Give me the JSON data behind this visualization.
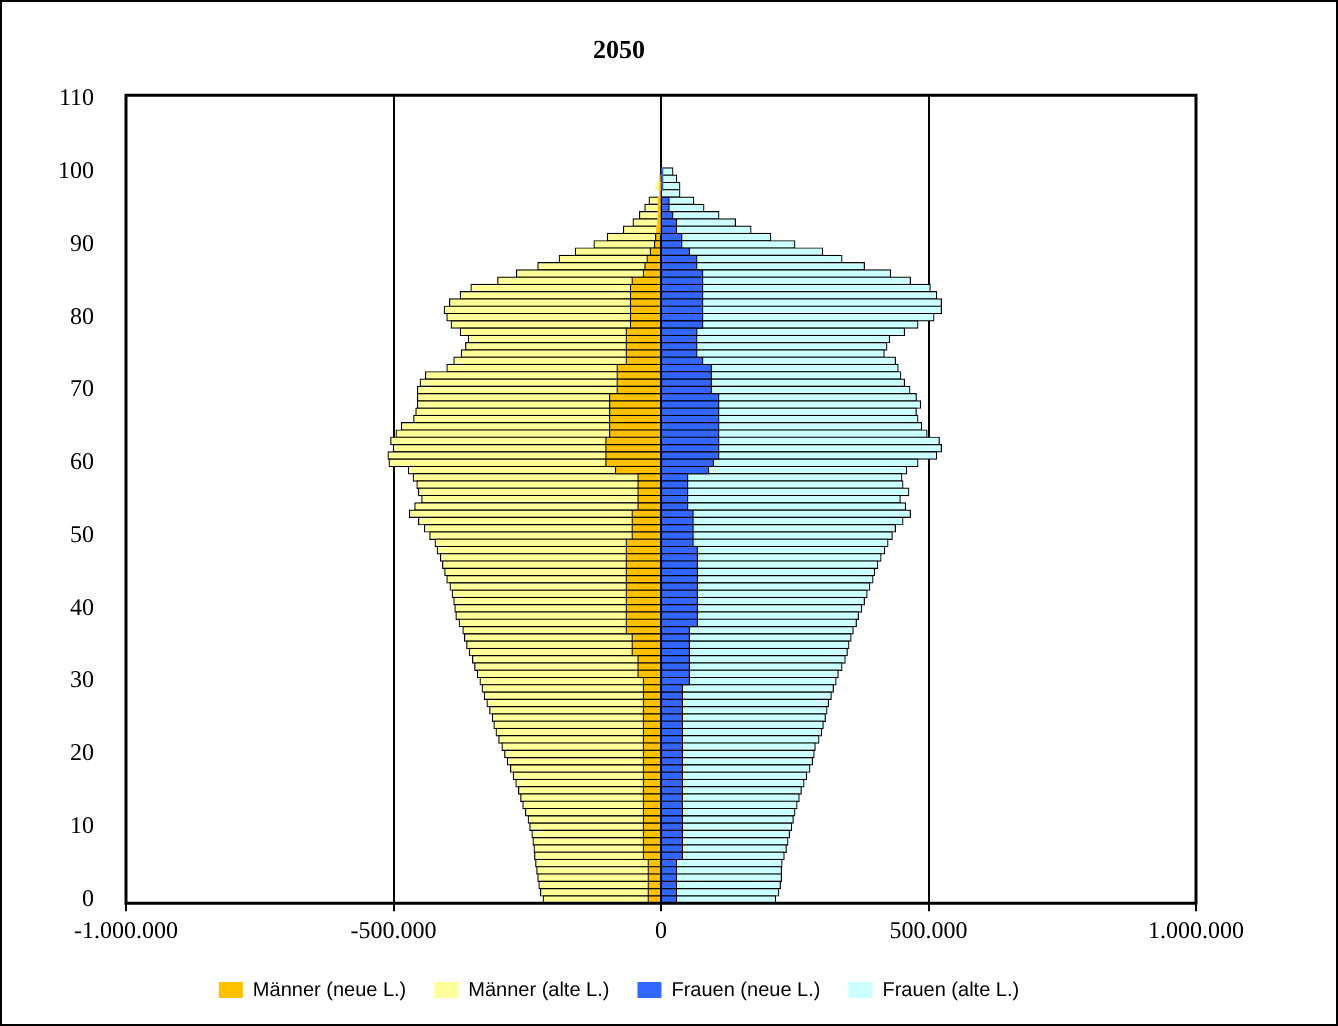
{
  "chart_data": {
    "type": "bar",
    "orientation": "horizontal",
    "stacked": true,
    "title": "2050",
    "categories": [
      "110",
      null,
      null,
      null,
      null,
      null,
      null,
      null,
      null,
      null,
      "100",
      null,
      null,
      null,
      null,
      null,
      null,
      null,
      null,
      null,
      "90",
      null,
      null,
      null,
      null,
      null,
      null,
      null,
      null,
      null,
      "80",
      null,
      null,
      null,
      null,
      null,
      null,
      null,
      null,
      null,
      "70",
      null,
      null,
      null,
      null,
      null,
      null,
      null,
      null,
      null,
      "60",
      null,
      null,
      null,
      null,
      null,
      null,
      null,
      null,
      null,
      "50",
      null,
      null,
      null,
      null,
      null,
      null,
      null,
      null,
      null,
      "40",
      null,
      null,
      null,
      null,
      null,
      null,
      null,
      null,
      null,
      "30",
      null,
      null,
      null,
      null,
      null,
      null,
      null,
      null,
      null,
      "20",
      null,
      null,
      null,
      null,
      null,
      null,
      null,
      null,
      null,
      "10",
      null,
      null,
      null,
      null,
      null,
      null,
      null,
      null,
      null,
      "0"
    ],
    "series": [
      {
        "name": "Männer (neue L.)",
        "color": "#ffc000",
        "values": [
          null,
          null,
          null,
          null,
          null,
          null,
          null,
          null,
          null,
          null,
          null,
          -2000,
          -2000,
          -2000,
          -5000,
          -5000,
          -5000,
          -6000,
          -8000,
          -10000,
          -12000,
          -20000,
          -26000,
          -30000,
          -33000,
          -54000,
          -57000,
          -57000,
          -57000,
          -57000,
          -57000,
          -57000,
          -65000,
          -65000,
          -65000,
          -65000,
          -65000,
          -82000,
          -82000,
          -82000,
          -82000,
          -96000,
          -96000,
          -96000,
          -96000,
          -96000,
          -96000,
          -103000,
          -103000,
          -103000,
          -103000,
          -85000,
          -43000,
          -43000,
          -43000,
          -43000,
          -43000,
          -54000,
          -54000,
          -54000,
          -54000,
          -65000,
          -65000,
          -65000,
          -65000,
          -65000,
          -65000,
          -65000,
          -65000,
          -65000,
          -65000,
          -65000,
          -65000,
          -65000,
          -54000,
          -54000,
          -54000,
          -43000,
          -43000,
          -43000,
          -33000,
          -33000,
          -33000,
          -33000,
          -33000,
          -33000,
          -33000,
          -33000,
          -33000,
          -33000,
          -33000,
          -33000,
          -33000,
          -33000,
          -33000,
          -33000,
          -33000,
          -33000,
          -33000,
          -33000,
          -33000,
          -33000,
          -33000,
          -33000,
          -33000,
          -24000,
          -24000,
          -24000,
          -24000,
          -24000,
          -24000
        ]
      },
      {
        "name": "Männer (alte L.)",
        "color": "#ffff99",
        "values": [
          null,
          null,
          null,
          null,
          null,
          null,
          null,
          null,
          null,
          null,
          null,
          null,
          -8000,
          null,
          -17000,
          -25000,
          -35000,
          -46000,
          -62000,
          -90000,
          -113000,
          -140000,
          -164000,
          -200000,
          -237000,
          -251000,
          -298000,
          -318000,
          -338000,
          -348000,
          -343000,
          -335000,
          -310000,
          -295000,
          -300000,
          -308000,
          -322000,
          -318000,
          -358000,
          -368000,
          -373000,
          -359000,
          -359000,
          -362000,
          -366000,
          -389000,
          -399000,
          -402000,
          -397000,
          -407000,
          -405000,
          -387000,
          -420000,
          -413000,
          -410000,
          -404000,
          -417000,
          -416000,
          -399000,
          -388000,
          -378000,
          -357000,
          -353000,
          -347000,
          -343000,
          -339000,
          -335000,
          -329000,
          -325000,
          -322000,
          -320000,
          -318000,
          -312000,
          -305000,
          -313000,
          -309000,
          -304000,
          -309000,
          -305000,
          -300000,
          -305000,
          -301000,
          -297000,
          -292000,
          -287000,
          -282000,
          -279000,
          -275000,
          -270000,
          -264000,
          -259000,
          -254000,
          -248000,
          -243000,
          -238000,
          -233000,
          -229000,
          -225000,
          -220000,
          -215000,
          -212000,
          -208000,
          -206000,
          -204000,
          -203000,
          -210000,
          -208000,
          -206000,
          -204000,
          -201000,
          -196000
        ]
      },
      {
        "name": "Frauen (neue L.)",
        "color": "#3366ff",
        "values": [
          null,
          null,
          null,
          null,
          null,
          null,
          null,
          null,
          null,
          null,
          3000,
          3000,
          3000,
          null,
          15000,
          15000,
          22000,
          29000,
          29000,
          39000,
          39000,
          53000,
          67000,
          67000,
          78000,
          78000,
          78000,
          78000,
          78000,
          78000,
          78000,
          78000,
          67000,
          67000,
          67000,
          67000,
          78000,
          94000,
          94000,
          94000,
          94000,
          108000,
          108000,
          108000,
          108000,
          108000,
          108000,
          108000,
          108000,
          108000,
          98000,
          89000,
          50000,
          50000,
          50000,
          50000,
          50000,
          60000,
          60000,
          60000,
          60000,
          60000,
          68000,
          68000,
          68000,
          68000,
          68000,
          68000,
          68000,
          68000,
          68000,
          68000,
          68000,
          53000,
          53000,
          53000,
          53000,
          53000,
          53000,
          53000,
          53000,
          40000,
          40000,
          40000,
          40000,
          40000,
          40000,
          40000,
          40000,
          40000,
          40000,
          40000,
          40000,
          40000,
          40000,
          40000,
          40000,
          40000,
          40000,
          40000,
          40000,
          40000,
          40000,
          40000,
          40000,
          29000,
          29000,
          29000,
          29000,
          29000,
          29000
        ]
      },
      {
        "name": "Frauen (alte L.)",
        "color": "#ccffff",
        "values": [
          null,
          null,
          null,
          null,
          null,
          null,
          null,
          null,
          null,
          null,
          19000,
          26000,
          32000,
          35000,
          46000,
          65000,
          86000,
          110000,
          139000,
          166000,
          211000,
          249000,
          271000,
          313000,
          351000,
          388000,
          425000,
          437000,
          446000,
          446000,
          432000,
          402000,
          388000,
          360000,
          355000,
          350000,
          360000,
          349000,
          354000,
          361000,
          371000,
          369000,
          377000,
          369000,
          372000,
          379000,
          389000,
          412000,
          416000,
          407000,
          382000,
          370000,
          400000,
          402000,
          413000,
          397000,
          407000,
          406000,
          392000,
          378000,
          372000,
          364000,
          350000,
          343000,
          337000,
          331000,
          328000,
          322000,
          317000,
          312000,
          307000,
          301000,
          297000,
          306000,
          302000,
          298000,
          295000,
          291000,
          285000,
          278000,
          274000,
          282000,
          278000,
          273000,
          270000,
          267000,
          263000,
          260000,
          255000,
          248000,
          246000,
          243000,
          238000,
          232000,
          227000,
          222000,
          218000,
          214000,
          210000,
          207000,
          204000,
          200000,
          197000,
          194000,
          190000,
          197000,
          196000,
          196000,
          194000,
          191000,
          185000
        ]
      }
    ],
    "xlim": [
      -1000000,
      1000000
    ],
    "xticks": [
      {
        "value": -1000000,
        "label": "-1.000.000"
      },
      {
        "value": -500000,
        "label": "-500.000"
      },
      0,
      {
        "value": 500000,
        "label": "500.000"
      },
      {
        "value": 1000000,
        "label": "1.000.000"
      }
    ],
    "grid": "x",
    "legend": "bottom"
  }
}
